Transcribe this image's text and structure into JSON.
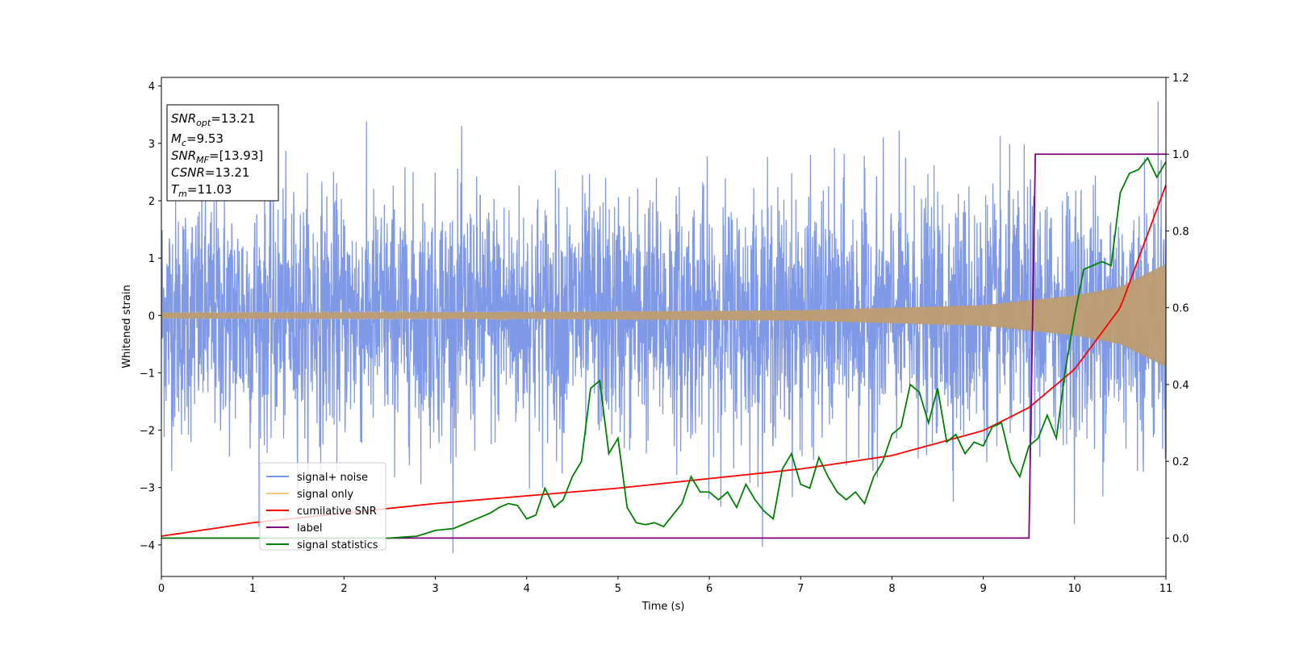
{
  "chart_data": {
    "type": "line",
    "xlabel": "Time (s)",
    "ylabel": "Whitened strain",
    "xlim": [
      0,
      11
    ],
    "ylim": [
      -4.55,
      4.15
    ],
    "y2lim": [
      -0.1,
      1.2
    ],
    "x_ticks": [
      "0",
      "1",
      "2",
      "3",
      "4",
      "5",
      "6",
      "7",
      "8",
      "9",
      "10",
      "11"
    ],
    "y_ticks": [
      "4",
      "3",
      "2",
      "1",
      "0",
      "−1",
      "−2",
      "−3",
      "−4"
    ],
    "y_tick_values": [
      4,
      3,
      2,
      1,
      0,
      -1,
      -2,
      -3,
      -4
    ],
    "y2_ticks": [
      "1.2",
      "1.0",
      "0.8",
      "0.6",
      "0.4",
      "0.2",
      "0.0"
    ],
    "y2_tick_values": [
      1.2,
      1.0,
      0.8,
      0.6,
      0.4,
      0.2,
      0.0
    ],
    "grid": false,
    "legend_position": "lower-left",
    "info_box": {
      "snr_opt": {
        "base": "SNR",
        "sub": "opt",
        "value": "=13.21"
      },
      "mc": {
        "base": "M",
        "sub": "c",
        "value": "=9.53"
      },
      "snr_mf": {
        "base": "SNR",
        "sub": "MF",
        "value": "=[13.93]"
      },
      "csnr": {
        "base": "CSNR",
        "value": "=13.21"
      },
      "tm": {
        "base": "T",
        "sub": "m",
        "value": "=11.03"
      }
    },
    "series": [
      {
        "name": "signal+ noise",
        "color": "#7894e6",
        "axis": "left",
        "description_level": "noise sigma ~1.0",
        "noise_sigma": 1.0
      },
      {
        "name": "signal only",
        "color": "#f5c678",
        "axis": "left",
        "envelope": [
          [
            0,
            0.05
          ],
          [
            4,
            0.06
          ],
          [
            7,
            0.09
          ],
          [
            9,
            0.18
          ],
          [
            10,
            0.35
          ],
          [
            10.5,
            0.5
          ],
          [
            11,
            0.9
          ]
        ]
      },
      {
        "name": "cumilative SNR",
        "color": "#ff0000",
        "axis": "right",
        "x": [
          0,
          1,
          2,
          3,
          4,
          5,
          6,
          7,
          8,
          9,
          9.5,
          10,
          10.5,
          11
        ],
        "y": [
          0.005,
          0.04,
          0.065,
          0.09,
          0.11,
          0.13,
          0.155,
          0.18,
          0.215,
          0.28,
          0.34,
          0.44,
          0.6,
          0.92
        ]
      },
      {
        "name": "label",
        "color": "#800080",
        "axis": "right",
        "x": [
          0,
          9.5,
          9.57,
          11
        ],
        "y": [
          0.0,
          0.0,
          1.0,
          1.0
        ]
      },
      {
        "name": "signal statistics",
        "color": "#008000",
        "axis": "right",
        "x": [
          0,
          0.5,
          1,
          1.5,
          2,
          2.5,
          2.8,
          3.0,
          3.2,
          3.4,
          3.6,
          3.7,
          3.8,
          3.9,
          4.0,
          4.1,
          4.2,
          4.3,
          4.4,
          4.5,
          4.6,
          4.7,
          4.8,
          4.9,
          5.0,
          5.1,
          5.2,
          5.3,
          5.4,
          5.5,
          5.6,
          5.7,
          5.8,
          5.9,
          6.0,
          6.1,
          6.2,
          6.3,
          6.4,
          6.5,
          6.6,
          6.7,
          6.8,
          6.9,
          7.0,
          7.1,
          7.2,
          7.3,
          7.4,
          7.5,
          7.6,
          7.7,
          7.8,
          7.9,
          8.0,
          8.1,
          8.2,
          8.3,
          8.4,
          8.5,
          8.6,
          8.7,
          8.8,
          8.9,
          9.0,
          9.1,
          9.2,
          9.3,
          9.4,
          9.5,
          9.6,
          9.7,
          9.8,
          9.9,
          10.0,
          10.1,
          10.2,
          10.3,
          10.4,
          10.5,
          10.6,
          10.7,
          10.8,
          10.9,
          11.0
        ],
        "y": [
          0.0,
          0.0,
          0.0,
          0.0,
          0.0,
          0.0,
          0.005,
          0.02,
          0.025,
          0.045,
          0.065,
          0.08,
          0.09,
          0.085,
          0.05,
          0.06,
          0.13,
          0.08,
          0.1,
          0.16,
          0.2,
          0.39,
          0.41,
          0.22,
          0.26,
          0.08,
          0.04,
          0.035,
          0.04,
          0.03,
          0.06,
          0.09,
          0.16,
          0.12,
          0.12,
          0.1,
          0.12,
          0.08,
          0.14,
          0.1,
          0.07,
          0.05,
          0.18,
          0.22,
          0.14,
          0.13,
          0.21,
          0.16,
          0.12,
          0.1,
          0.12,
          0.09,
          0.16,
          0.2,
          0.27,
          0.29,
          0.4,
          0.38,
          0.3,
          0.39,
          0.25,
          0.27,
          0.22,
          0.25,
          0.24,
          0.29,
          0.3,
          0.2,
          0.16,
          0.24,
          0.26,
          0.32,
          0.26,
          0.44,
          0.58,
          0.7,
          0.71,
          0.72,
          0.71,
          0.9,
          0.95,
          0.96,
          0.99,
          0.94,
          0.98
        ]
      }
    ]
  }
}
